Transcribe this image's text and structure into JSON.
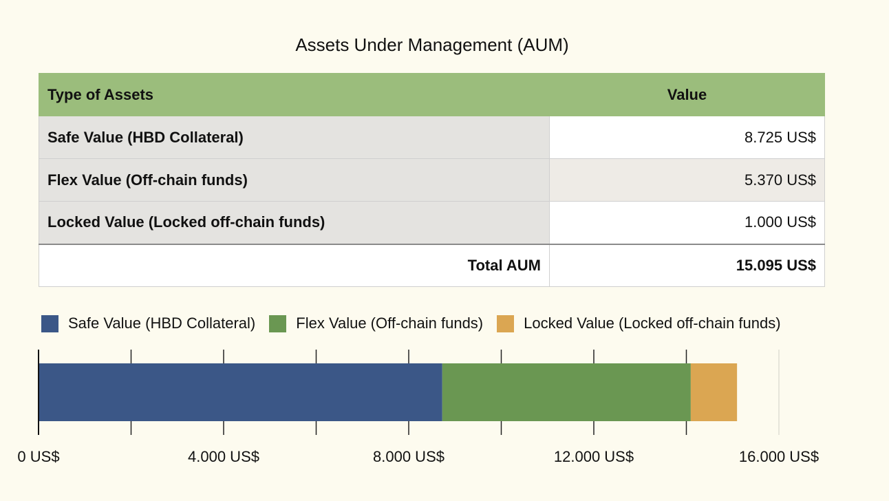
{
  "table": {
    "title": "Assets Under Management (AUM)",
    "headers": [
      "Type of Assets",
      "Value"
    ],
    "rows": [
      {
        "label": "Safe Value (HBD Collateral)",
        "value": "8.725 US$"
      },
      {
        "label": "Flex Value (Off-chain funds)",
        "value": "5.370 US$"
      },
      {
        "label": "Locked Value (Locked off-chain funds)",
        "value": "1.000 US$"
      }
    ],
    "total": {
      "label": "Total AUM",
      "value": "15.095 US$"
    }
  },
  "chart_data": {
    "type": "bar",
    "orientation": "horizontal",
    "stacked": true,
    "categories": [
      ""
    ],
    "series": [
      {
        "name": "Safe Value (HBD Collateral)",
        "values": [
          8725
        ],
        "color": "#3b5787"
      },
      {
        "name": "Flex Value (Off-chain funds)",
        "values": [
          5370
        ],
        "color": "#6a9752"
      },
      {
        "name": "Locked Value (Locked off-chain funds)",
        "values": [
          1000
        ],
        "color": "#dba652"
      }
    ],
    "xlim": [
      0,
      16000
    ],
    "x_ticks": [
      0,
      4000,
      8000,
      12000,
      16000
    ],
    "x_tick_labels": [
      "0 US$",
      "4.000 US$",
      "8.000 US$",
      "12.000 US$",
      "16.000 US$"
    ],
    "minor_gridlines": [
      2000,
      6000,
      10000,
      14000
    ],
    "grid": true,
    "legend_position": "top"
  }
}
